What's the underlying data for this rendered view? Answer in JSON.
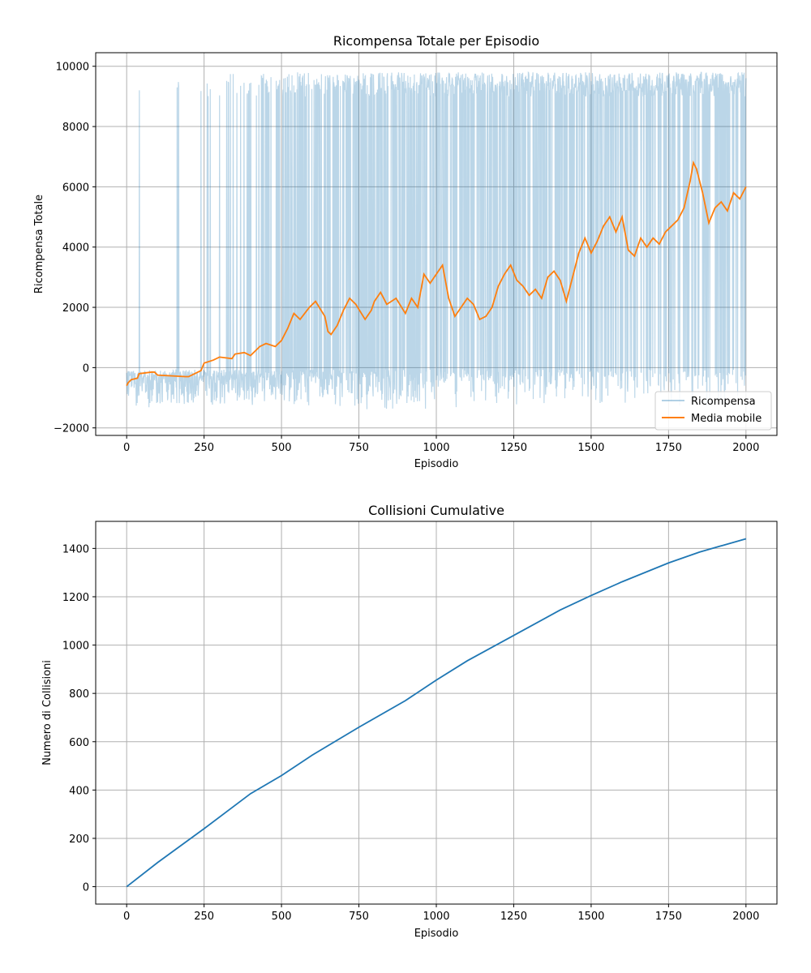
{
  "colors": {
    "reward_raw": "#1f77b4",
    "reward_avg": "#ff7f0e",
    "collisions": "#1f77b4",
    "grid": "#b0b0b0",
    "axes": "#000000"
  },
  "chart_data": [
    {
      "type": "line",
      "title": "Ricompensa Totale per Episodio",
      "xlabel": "Episodio",
      "ylabel": "Ricompensa Totale",
      "xlim": [
        -100,
        2100
      ],
      "ylim": [
        -2250,
        10450
      ],
      "xticks": [
        0,
        250,
        500,
        750,
        1000,
        1250,
        1500,
        1750,
        2000
      ],
      "yticks": [
        -2000,
        0,
        2000,
        4000,
        6000,
        8000,
        10000
      ],
      "xtick_labels": [
        "0",
        "250",
        "500",
        "750",
        "1000",
        "1250",
        "1500",
        "1750",
        "2000"
      ],
      "ytick_labels": [
        "−2000",
        "0",
        "2000",
        "4000",
        "6000",
        "8000",
        "10000"
      ],
      "grid": true,
      "legend_position": "lower-right",
      "series": [
        {
          "name": "Ricompensa",
          "style": "raw-noisy",
          "alpha": 0.3,
          "x": [
            0,
            2000
          ],
          "noise_floor": -300,
          "success_value_range": [
            9000,
            9800
          ],
          "success_rate_by_episode": [
            [
              0,
              0.0
            ],
            [
              250,
              0.04
            ],
            [
              450,
              0.18
            ],
            [
              750,
              0.45
            ],
            [
              1000,
              0.58
            ],
            [
              1250,
              0.6
            ],
            [
              1500,
              0.68
            ],
            [
              1750,
              0.72
            ],
            [
              2000,
              0.76
            ]
          ]
        },
        {
          "name": "Media mobile",
          "style": "line",
          "x": [
            0,
            5,
            15,
            35,
            40,
            80,
            90,
            100,
            190,
            200,
            240,
            250,
            280,
            300,
            340,
            350,
            380,
            400,
            430,
            450,
            480,
            500,
            520,
            540,
            560,
            590,
            610,
            640,
            650,
            660,
            680,
            700,
            720,
            740,
            770,
            790,
            800,
            820,
            840,
            870,
            900,
            920,
            940,
            960,
            980,
            1000,
            1020,
            1040,
            1060,
            1080,
            1100,
            1120,
            1140,
            1160,
            1180,
            1200,
            1220,
            1240,
            1260,
            1280,
            1300,
            1320,
            1340,
            1360,
            1380,
            1400,
            1420,
            1440,
            1460,
            1480,
            1500,
            1520,
            1540,
            1560,
            1580,
            1600,
            1620,
            1640,
            1660,
            1680,
            1700,
            1720,
            1740,
            1760,
            1780,
            1800,
            1820,
            1830,
            1840,
            1860,
            1880,
            1900,
            1920,
            1940,
            1960,
            1980,
            2000
          ],
          "y": [
            -600,
            -500,
            -400,
            -350,
            -200,
            -150,
            -150,
            -250,
            -300,
            -300,
            -100,
            150,
            250,
            350,
            300,
            450,
            500,
            400,
            700,
            800,
            700,
            900,
            1300,
            1800,
            1600,
            2000,
            2200,
            1700,
            1200,
            1100,
            1400,
            1900,
            2300,
            2100,
            1600,
            1900,
            2200,
            2500,
            2100,
            2300,
            1800,
            2300,
            2000,
            3100,
            2800,
            3100,
            3400,
            2300,
            1700,
            2000,
            2300,
            2100,
            1600,
            1700,
            2000,
            2700,
            3100,
            3400,
            2900,
            2700,
            2400,
            2600,
            2300,
            3000,
            3200,
            2900,
            2200,
            3000,
            3800,
            4300,
            3800,
            4200,
            4700,
            5000,
            4500,
            5000,
            3900,
            3700,
            4300,
            4000,
            4300,
            4100,
            4500,
            4700,
            4900,
            5300,
            6200,
            6800,
            6600,
            5800,
            4800,
            5300,
            5500,
            5200,
            5800,
            5600,
            6000
          ]
        }
      ]
    },
    {
      "type": "line",
      "title": "Collisioni Cumulative",
      "xlabel": "Episodio",
      "ylabel": "Numero di Collisioni",
      "xlim": [
        -100,
        2100
      ],
      "ylim": [
        -72,
        1512
      ],
      "xticks": [
        0,
        250,
        500,
        750,
        1000,
        1250,
        1500,
        1750,
        2000
      ],
      "yticks": [
        0,
        200,
        400,
        600,
        800,
        1000,
        1200,
        1400
      ],
      "xtick_labels": [
        "0",
        "250",
        "500",
        "750",
        "1000",
        "1250",
        "1500",
        "1750",
        "2000"
      ],
      "ytick_labels": [
        "0",
        "200",
        "400",
        "600",
        "800",
        "1000",
        "1200",
        "1400"
      ],
      "grid": true,
      "series": [
        {
          "x": [
            0,
            100,
            250,
            400,
            500,
            600,
            750,
            900,
            1000,
            1100,
            1250,
            1400,
            1500,
            1600,
            1750,
            1850,
            2000
          ],
          "values": [
            0,
            100,
            240,
            385,
            460,
            545,
            660,
            770,
            855,
            935,
            1040,
            1145,
            1205,
            1262,
            1340,
            1385,
            1440
          ]
        }
      ]
    }
  ]
}
